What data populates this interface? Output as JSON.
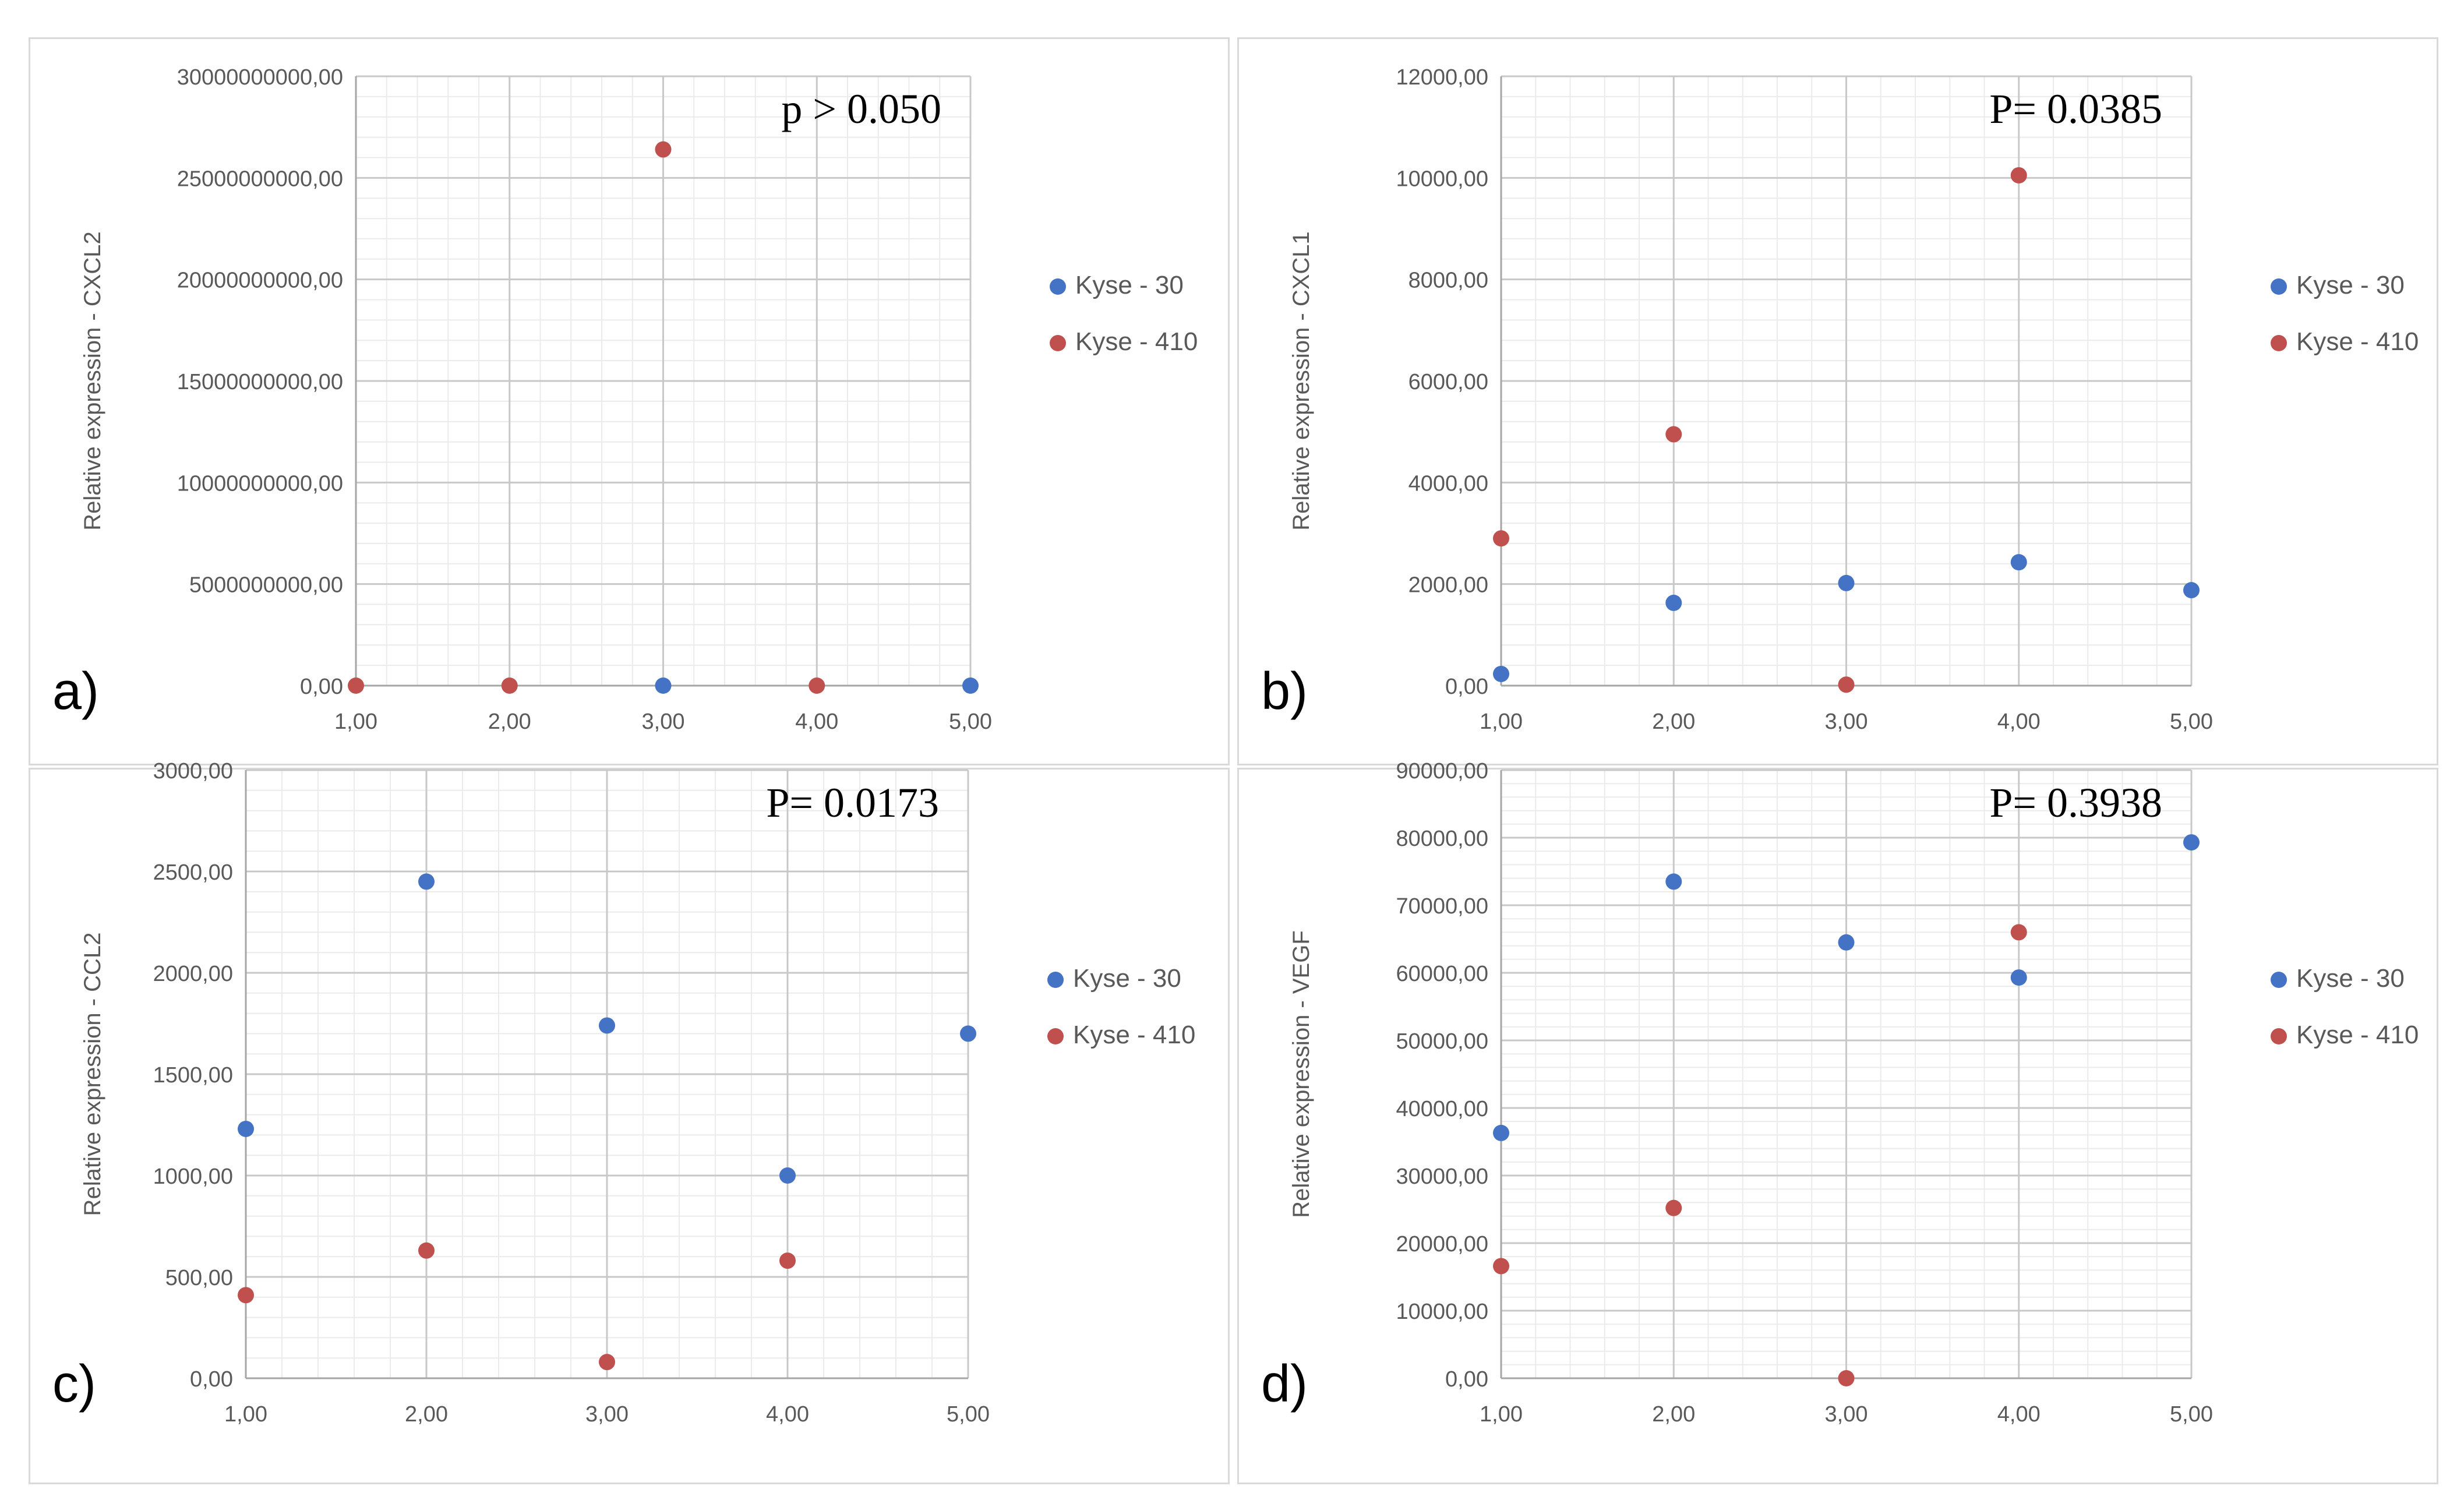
{
  "colors": {
    "series_a": "#4472c4",
    "series_b": "#c0504d",
    "grid_major": "#c8c8c8",
    "grid_minor": "#ebebeb",
    "axis": "#a6a6a6",
    "tick_text": "#595959",
    "panel_border": "#d9d9d9"
  },
  "chart_data": [
    {
      "type": "scatter",
      "panel_label": "a)",
      "annotation": "p > 0.050",
      "ylabel": "Relative expression - CXCL2",
      "xlabel": "",
      "xlim": [
        1,
        5
      ],
      "ylim": [
        0,
        30000000000
      ],
      "xticks": [
        1,
        2,
        3,
        4,
        5
      ],
      "xtick_labels": [
        "1,00",
        "2,00",
        "3,00",
        "4,00",
        "5,00"
      ],
      "yticks": [
        0,
        5000000000,
        10000000000,
        15000000000,
        20000000000,
        25000000000,
        30000000000
      ],
      "ytick_labels": [
        "0,00",
        "5000000000,00",
        "10000000000,00",
        "15000000000,00",
        "20000000000,00",
        "25000000000,00",
        "30000000000,00"
      ],
      "legend_position": "right",
      "series": [
        {
          "name": "Kyse - 30",
          "color": "#4472c4",
          "x": [
            3,
            5
          ],
          "y": [
            0,
            0
          ]
        },
        {
          "name": "Kyse - 410",
          "color": "#c0504d",
          "x": [
            1,
            2,
            3,
            4
          ],
          "y": [
            0,
            0,
            26400000000,
            0
          ]
        }
      ]
    },
    {
      "type": "scatter",
      "panel_label": "b)",
      "annotation": "P= 0.0385",
      "ylabel": "Relative expression - CXCL1",
      "xlabel": "",
      "xlim": [
        1,
        5
      ],
      "ylim": [
        0,
        12000
      ],
      "xticks": [
        1,
        2,
        3,
        4,
        5
      ],
      "xtick_labels": [
        "1,00",
        "2,00",
        "3,00",
        "4,00",
        "5,00"
      ],
      "yticks": [
        0,
        2000,
        4000,
        6000,
        8000,
        10000,
        12000
      ],
      "ytick_labels": [
        "0,00",
        "2000,00",
        "4000,00",
        "6000,00",
        "8000,00",
        "10000,00",
        "12000,00"
      ],
      "legend_position": "right",
      "series": [
        {
          "name": "Kyse - 30",
          "color": "#4472c4",
          "x": [
            1,
            2,
            3,
            4,
            5
          ],
          "y": [
            230,
            1630,
            2020,
            2430,
            1880
          ]
        },
        {
          "name": "Kyse - 410",
          "color": "#c0504d",
          "x": [
            1,
            2,
            3,
            4
          ],
          "y": [
            2900,
            4950,
            20,
            10050
          ]
        }
      ]
    },
    {
      "type": "scatter",
      "panel_label": "c)",
      "annotation": "P= 0.0173",
      "ylabel": "Relative expression - CCL2",
      "xlabel": "",
      "xlim": [
        1,
        5
      ],
      "ylim": [
        0,
        3000
      ],
      "xticks": [
        1,
        2,
        3,
        4,
        5
      ],
      "xtick_labels": [
        "1,00",
        "2,00",
        "3,00",
        "4,00",
        "5,00"
      ],
      "yticks": [
        0,
        500,
        1000,
        1500,
        2000,
        2500,
        3000
      ],
      "ytick_labels": [
        "0,00",
        "500,00",
        "1000,00",
        "1500,00",
        "2000,00",
        "2500,00",
        "3000,00"
      ],
      "legend_position": "right",
      "series": [
        {
          "name": "Kyse - 30",
          "color": "#4472c4",
          "x": [
            1,
            2,
            3,
            4,
            5
          ],
          "y": [
            1230,
            2450,
            1740,
            1000,
            1700
          ]
        },
        {
          "name": "Kyse - 410",
          "color": "#c0504d",
          "x": [
            1,
            2,
            3,
            4
          ],
          "y": [
            410,
            630,
            80,
            580
          ]
        }
      ]
    },
    {
      "type": "scatter",
      "panel_label": "d)",
      "annotation": "P= 0.3938",
      "ylabel": "Relative expression - VEGF",
      "xlabel": "",
      "xlim": [
        1,
        5
      ],
      "ylim": [
        0,
        90000
      ],
      "xticks": [
        1,
        2,
        3,
        4,
        5
      ],
      "xtick_labels": [
        "1,00",
        "2,00",
        "3,00",
        "4,00",
        "5,00"
      ],
      "yticks": [
        0,
        10000,
        20000,
        30000,
        40000,
        50000,
        60000,
        70000,
        80000,
        90000
      ],
      "ytick_labels": [
        "0,00",
        "10000,00",
        "20000,00",
        "30000,00",
        "40000,00",
        "50000,00",
        "60000,00",
        "70000,00",
        "80000,00",
        "90000,00"
      ],
      "legend_position": "right",
      "series": [
        {
          "name": "Kyse - 30",
          "color": "#4472c4",
          "x": [
            1,
            2,
            3,
            4,
            5
          ],
          "y": [
            36300,
            73500,
            64500,
            59300,
            79300
          ]
        },
        {
          "name": "Kyse - 410",
          "color": "#c0504d",
          "x": [
            1,
            2,
            3,
            4
          ],
          "y": [
            16600,
            25200,
            0,
            66000
          ]
        }
      ]
    }
  ]
}
